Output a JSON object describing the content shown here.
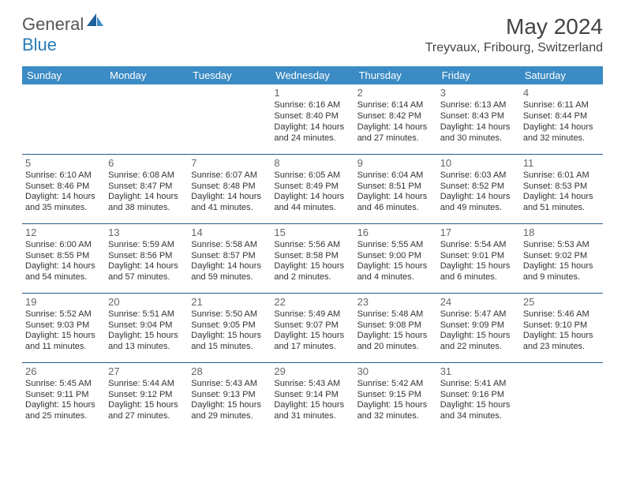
{
  "brand": {
    "part1": "General",
    "part2": "Blue"
  },
  "title": "May 2024",
  "location": "Treyvaux, Fribourg, Switzerland",
  "colors": {
    "headerBg": "#3b8bc4",
    "headerText": "#ffffff",
    "cellBorder": "#2a5a8a",
    "daynum": "#666666",
    "body": "#333333",
    "brandGray": "#555555",
    "brandBlue": "#2a7ab8"
  },
  "dayHeaders": [
    "Sunday",
    "Monday",
    "Tuesday",
    "Wednesday",
    "Thursday",
    "Friday",
    "Saturday"
  ],
  "weeks": [
    [
      null,
      null,
      null,
      {
        "n": "1",
        "sr": "6:16 AM",
        "ss": "8:40 PM",
        "dl1": "Daylight: 14 hours",
        "dl2": "and 24 minutes."
      },
      {
        "n": "2",
        "sr": "6:14 AM",
        "ss": "8:42 PM",
        "dl1": "Daylight: 14 hours",
        "dl2": "and 27 minutes."
      },
      {
        "n": "3",
        "sr": "6:13 AM",
        "ss": "8:43 PM",
        "dl1": "Daylight: 14 hours",
        "dl2": "and 30 minutes."
      },
      {
        "n": "4",
        "sr": "6:11 AM",
        "ss": "8:44 PM",
        "dl1": "Daylight: 14 hours",
        "dl2": "and 32 minutes."
      }
    ],
    [
      {
        "n": "5",
        "sr": "6:10 AM",
        "ss": "8:46 PM",
        "dl1": "Daylight: 14 hours",
        "dl2": "and 35 minutes."
      },
      {
        "n": "6",
        "sr": "6:08 AM",
        "ss": "8:47 PM",
        "dl1": "Daylight: 14 hours",
        "dl2": "and 38 minutes."
      },
      {
        "n": "7",
        "sr": "6:07 AM",
        "ss": "8:48 PM",
        "dl1": "Daylight: 14 hours",
        "dl2": "and 41 minutes."
      },
      {
        "n": "8",
        "sr": "6:05 AM",
        "ss": "8:49 PM",
        "dl1": "Daylight: 14 hours",
        "dl2": "and 44 minutes."
      },
      {
        "n": "9",
        "sr": "6:04 AM",
        "ss": "8:51 PM",
        "dl1": "Daylight: 14 hours",
        "dl2": "and 46 minutes."
      },
      {
        "n": "10",
        "sr": "6:03 AM",
        "ss": "8:52 PM",
        "dl1": "Daylight: 14 hours",
        "dl2": "and 49 minutes."
      },
      {
        "n": "11",
        "sr": "6:01 AM",
        "ss": "8:53 PM",
        "dl1": "Daylight: 14 hours",
        "dl2": "and 51 minutes."
      }
    ],
    [
      {
        "n": "12",
        "sr": "6:00 AM",
        "ss": "8:55 PM",
        "dl1": "Daylight: 14 hours",
        "dl2": "and 54 minutes."
      },
      {
        "n": "13",
        "sr": "5:59 AM",
        "ss": "8:56 PM",
        "dl1": "Daylight: 14 hours",
        "dl2": "and 57 minutes."
      },
      {
        "n": "14",
        "sr": "5:58 AM",
        "ss": "8:57 PM",
        "dl1": "Daylight: 14 hours",
        "dl2": "and 59 minutes."
      },
      {
        "n": "15",
        "sr": "5:56 AM",
        "ss": "8:58 PM",
        "dl1": "Daylight: 15 hours",
        "dl2": "and 2 minutes."
      },
      {
        "n": "16",
        "sr": "5:55 AM",
        "ss": "9:00 PM",
        "dl1": "Daylight: 15 hours",
        "dl2": "and 4 minutes."
      },
      {
        "n": "17",
        "sr": "5:54 AM",
        "ss": "9:01 PM",
        "dl1": "Daylight: 15 hours",
        "dl2": "and 6 minutes."
      },
      {
        "n": "18",
        "sr": "5:53 AM",
        "ss": "9:02 PM",
        "dl1": "Daylight: 15 hours",
        "dl2": "and 9 minutes."
      }
    ],
    [
      {
        "n": "19",
        "sr": "5:52 AM",
        "ss": "9:03 PM",
        "dl1": "Daylight: 15 hours",
        "dl2": "and 11 minutes."
      },
      {
        "n": "20",
        "sr": "5:51 AM",
        "ss": "9:04 PM",
        "dl1": "Daylight: 15 hours",
        "dl2": "and 13 minutes."
      },
      {
        "n": "21",
        "sr": "5:50 AM",
        "ss": "9:05 PM",
        "dl1": "Daylight: 15 hours",
        "dl2": "and 15 minutes."
      },
      {
        "n": "22",
        "sr": "5:49 AM",
        "ss": "9:07 PM",
        "dl1": "Daylight: 15 hours",
        "dl2": "and 17 minutes."
      },
      {
        "n": "23",
        "sr": "5:48 AM",
        "ss": "9:08 PM",
        "dl1": "Daylight: 15 hours",
        "dl2": "and 20 minutes."
      },
      {
        "n": "24",
        "sr": "5:47 AM",
        "ss": "9:09 PM",
        "dl1": "Daylight: 15 hours",
        "dl2": "and 22 minutes."
      },
      {
        "n": "25",
        "sr": "5:46 AM",
        "ss": "9:10 PM",
        "dl1": "Daylight: 15 hours",
        "dl2": "and 23 minutes."
      }
    ],
    [
      {
        "n": "26",
        "sr": "5:45 AM",
        "ss": "9:11 PM",
        "dl1": "Daylight: 15 hours",
        "dl2": "and 25 minutes."
      },
      {
        "n": "27",
        "sr": "5:44 AM",
        "ss": "9:12 PM",
        "dl1": "Daylight: 15 hours",
        "dl2": "and 27 minutes."
      },
      {
        "n": "28",
        "sr": "5:43 AM",
        "ss": "9:13 PM",
        "dl1": "Daylight: 15 hours",
        "dl2": "and 29 minutes."
      },
      {
        "n": "29",
        "sr": "5:43 AM",
        "ss": "9:14 PM",
        "dl1": "Daylight: 15 hours",
        "dl2": "and 31 minutes."
      },
      {
        "n": "30",
        "sr": "5:42 AM",
        "ss": "9:15 PM",
        "dl1": "Daylight: 15 hours",
        "dl2": "and 32 minutes."
      },
      {
        "n": "31",
        "sr": "5:41 AM",
        "ss": "9:16 PM",
        "dl1": "Daylight: 15 hours",
        "dl2": "and 34 minutes."
      },
      null
    ]
  ],
  "labels": {
    "sunrise": "Sunrise:",
    "sunset": "Sunset:"
  }
}
